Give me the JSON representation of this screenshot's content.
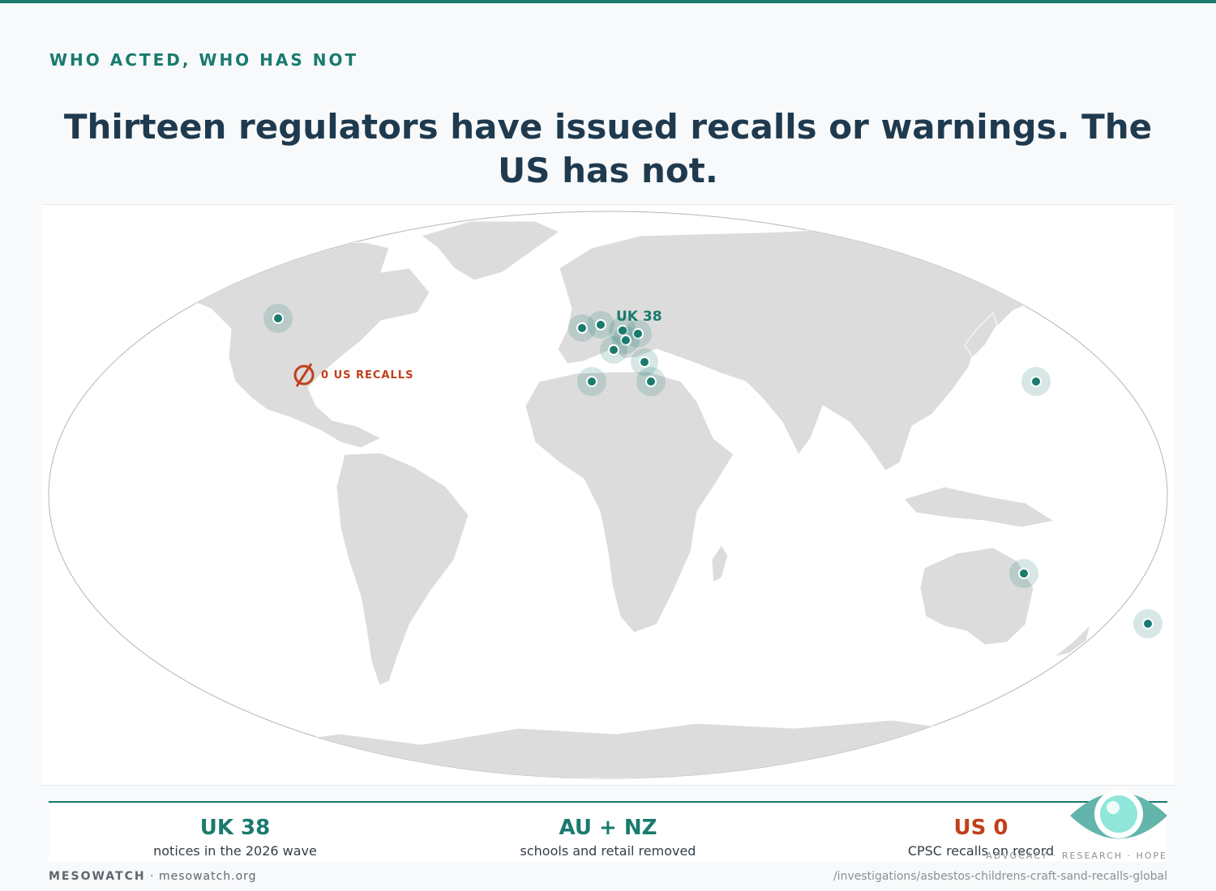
{
  "section_label": "WHO ACTED, WHO HAS NOT",
  "headline": "Thirteen regulators have issued recalls or warnings. The US has not.",
  "map": {
    "uk_label": "UK 38",
    "us_label": "0 US RECALLS",
    "land_color": "#dcdcdc",
    "marker_color": "#1a7a6e",
    "halo_color": "#c9dedd",
    "alert_color": "#c0401a",
    "markers": [
      {
        "name": "canada"
      },
      {
        "name": "united-kingdom"
      },
      {
        "name": "france"
      },
      {
        "name": "germany"
      },
      {
        "name": "austria"
      },
      {
        "name": "hungary"
      },
      {
        "name": "italy"
      },
      {
        "name": "greece"
      },
      {
        "name": "libya"
      },
      {
        "name": "egypt"
      },
      {
        "name": "japan"
      },
      {
        "name": "australia"
      },
      {
        "name": "new-zealand"
      }
    ]
  },
  "stats": [
    {
      "value": "UK 38",
      "label": "notices in the 2026 wave"
    },
    {
      "value": "AU + NZ",
      "label": "schools and retail removed"
    },
    {
      "value": "US 0",
      "label": "CPSC recalls on record"
    }
  ],
  "tagline": "ADVOCACY · RESEARCH · HOPE",
  "footer": {
    "brand": "MESOWATCH",
    "site": "mesowatch.org",
    "path": "/investigations/asbestos-childrens-craft-sand-recalls-global"
  }
}
